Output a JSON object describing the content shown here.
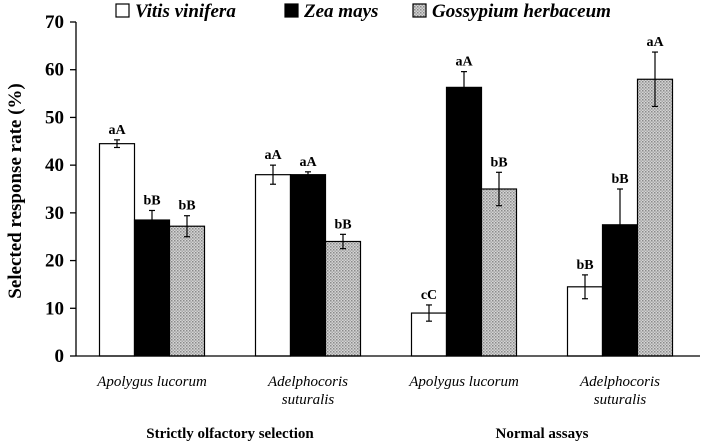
{
  "chart_data": {
    "type": "bar",
    "title": "",
    "xlabel": "",
    "ylabel": "Selected response rate (%)",
    "ylim": [
      0,
      70
    ],
    "yticks": [
      0,
      10,
      20,
      30,
      40,
      50,
      60,
      70
    ],
    "grid": false,
    "legend_position": "top",
    "categories": [
      [
        "Apolygus lucorum"
      ],
      [
        "Adelphocoris",
        "suturalis"
      ],
      [
        "Apolygus lucorum"
      ],
      [
        "Adelphocoris",
        "suturalis"
      ]
    ],
    "groups": [
      {
        "label": "Strictly olfactory selection",
        "categories": [
          0,
          1
        ]
      },
      {
        "label": "Normal assays",
        "categories": [
          2,
          3
        ]
      }
    ],
    "series": [
      {
        "name": "Vitis vinifera",
        "color": "#ffffff",
        "pattern": "none",
        "values": [
          44.5,
          38,
          9,
          14.5
        ],
        "errors": [
          0.8,
          2,
          1.7,
          2.5
        ],
        "labels": [
          "aA",
          "aA",
          "cC",
          "bB"
        ]
      },
      {
        "name": "Zea mays",
        "color": "#000000",
        "pattern": "none",
        "values": [
          28.5,
          38,
          56.3,
          27.5
        ],
        "errors": [
          2,
          0.6,
          3.3,
          7.5
        ],
        "labels": [
          "bB",
          "aA",
          "aA",
          "bB"
        ]
      },
      {
        "name": "Gossypium herbaceum",
        "color": "#bdbdbd",
        "pattern": "dots",
        "values": [
          27.2,
          24,
          35,
          58
        ],
        "errors": [
          2.2,
          1.5,
          3.5,
          5.7
        ],
        "labels": [
          "bB",
          "bB",
          "bB",
          "aA"
        ]
      }
    ]
  }
}
